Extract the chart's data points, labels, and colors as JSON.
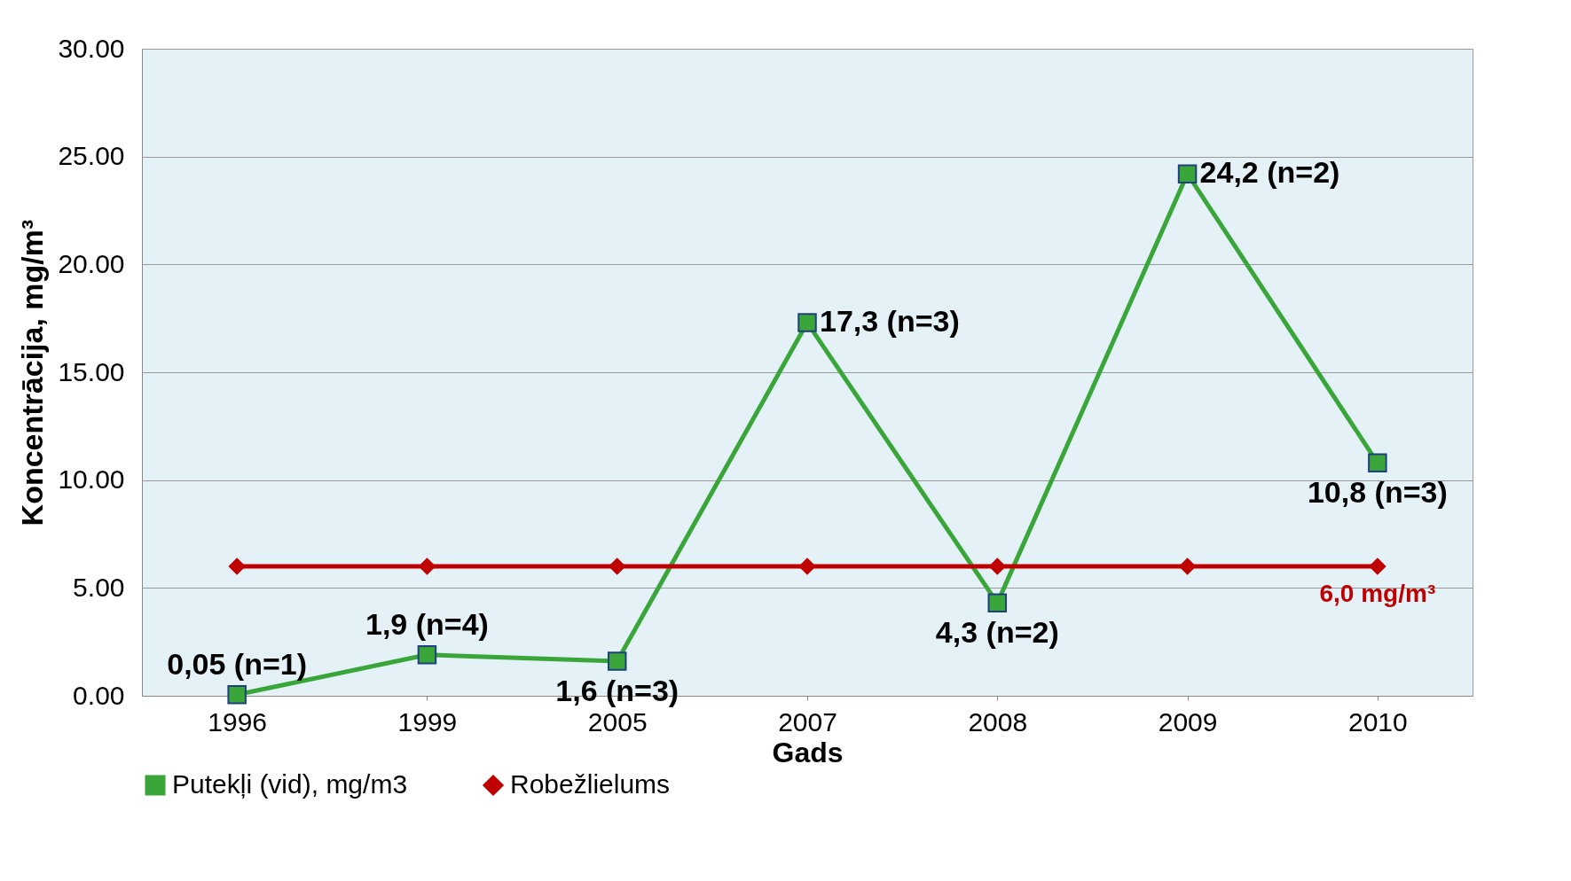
{
  "chart_data": {
    "type": "line",
    "categories": [
      "1996",
      "1999",
      "2005",
      "2007",
      "2008",
      "2009",
      "2010"
    ],
    "xlabel": "Gads",
    "ylabel": "Koncentrācija, mg/m³",
    "ylim": [
      0,
      30
    ],
    "yticks": [
      {
        "value": 0,
        "label": "0.00"
      },
      {
        "value": 5,
        "label": "5.00"
      },
      {
        "value": 10,
        "label": "10.00"
      },
      {
        "value": 15,
        "label": "15.00"
      },
      {
        "value": 20,
        "label": "20.00"
      },
      {
        "value": 25,
        "label": "25.00"
      },
      {
        "value": 30,
        "label": "30.00"
      }
    ],
    "grid": "y",
    "legend": "bottom",
    "line_style": "solid",
    "series": [
      {
        "name": "Putekļi (vid), mg/m3",
        "color": "#3aa63a",
        "marker": "square",
        "values": [
          0.05,
          1.9,
          1.6,
          17.3,
          4.3,
          24.2,
          10.8
        ],
        "value_labels": [
          "0,05 (n=1)",
          "1,9 (n=4)",
          "1,6 (n=3)",
          "17,3 (n=3)",
          "4,3 (n=2)",
          "24,2 (n=2)",
          "10,8 (n=3)"
        ]
      },
      {
        "name": "Robežlielums",
        "color": "#c00000",
        "marker": "diamond",
        "values": [
          6,
          6,
          6,
          6,
          6,
          6,
          6
        ]
      }
    ],
    "annotations": [
      {
        "text": "6,0 mg/m³",
        "x": "2010",
        "y": 6
      }
    ]
  }
}
